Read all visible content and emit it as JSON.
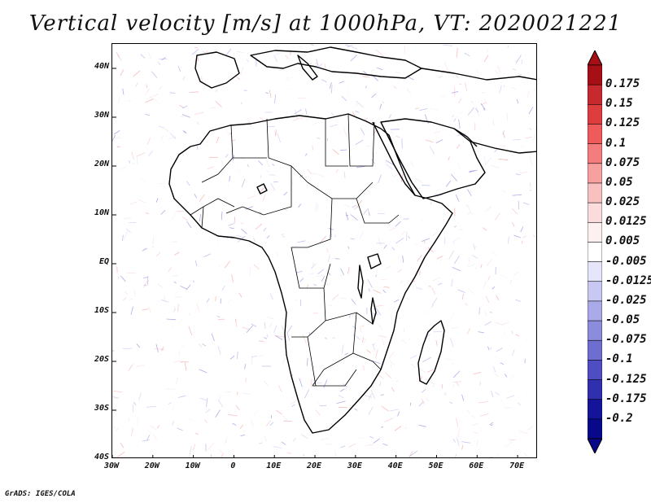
{
  "title": "Vertical velocity [m/s] at 1000hPa, VT: 2020021221",
  "credit": "GrADS: IGES/COLA",
  "map": {
    "projection": "latlon",
    "lon_range": [
      -30,
      75
    ],
    "lat_range": [
      -40,
      45
    ],
    "lat_labels": [
      "40N",
      "30N",
      "20N",
      "10N",
      "EQ",
      "10S",
      "20S",
      "30S",
      "40S"
    ],
    "lat_values": [
      40,
      30,
      20,
      10,
      0,
      -10,
      -20,
      -30,
      -40
    ],
    "lon_labels": [
      "30W",
      "20W",
      "10W",
      "0",
      "10E",
      "20E",
      "30E",
      "40E",
      "50E",
      "60E",
      "70E"
    ],
    "lon_values": [
      -30,
      -20,
      -10,
      0,
      10,
      20,
      30,
      40,
      50,
      60,
      70
    ],
    "coastline_color": "#000000",
    "field": "vertical velocity, fine-scale contour noise over land and ocean"
  },
  "colorbar": {
    "labels": [
      "0.175",
      "0.15",
      "0.125",
      "0.1",
      "0.075",
      "0.05",
      "0.025",
      "0.0125",
      "0.005",
      "-0.005",
      "-0.0125",
      "-0.025",
      "-0.05",
      "-0.075",
      "-0.1",
      "-0.125",
      "-0.175",
      "-0.2"
    ],
    "colors": [
      "#a50f15",
      "#c62a2f",
      "#de3d3d",
      "#ef5a5a",
      "#f37d7d",
      "#f6a0a0",
      "#f9c0c0",
      "#fbdcdc",
      "#fdf0f0",
      "#ffffff",
      "#e6e6fa",
      "#c8c8f2",
      "#aaaae8",
      "#8c8cdc",
      "#6e6ed0",
      "#4e4ec2",
      "#2f2fb0",
      "#14149a",
      "#08088a"
    ],
    "top_arrow_color": "#a50f15",
    "bottom_arrow_color": "#08088a"
  }
}
